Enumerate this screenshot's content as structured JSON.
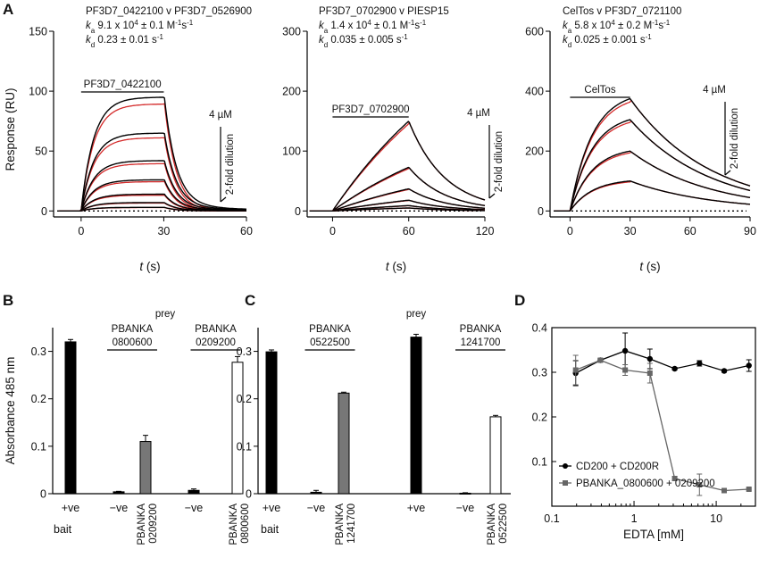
{
  "panel_labels": {
    "A": "A",
    "B": "B",
    "C": "C",
    "D": "D"
  },
  "common": {
    "spr_ylabel": "Response (RU)",
    "spr_xlabel_t": "t",
    "spr_xlabel_unit": " (s)",
    "elisa_ylabel": "Absorbance 485 nm",
    "prey": "prey",
    "bait": "bait"
  },
  "chart_data": [
    {
      "id": "A1",
      "type": "line",
      "title": "PF3D7_0422100 v PF3D7_0526900",
      "ka_sub": "a",
      "ka_val": " 9.1 x 10",
      "ka_exp": "4",
      "ka_rest": " ± 0.1 M",
      "ka_unit_exp": "-1",
      "ka_rest2": "s",
      "ka_unit_exp2": "-1",
      "kd_sub": "d",
      "kd_val": " 0.23 ± 0.01 s",
      "kd_unit_exp": "-1",
      "analyte_label": "PF3D7_0422100",
      "conc_label": "4 µM",
      "dilution_label": "2-fold dilution",
      "xlim": [
        -10,
        60
      ],
      "ylim": [
        -5,
        150
      ],
      "xticks": [
        0,
        30,
        60
      ],
      "yticks": [
        0,
        50,
        100,
        150
      ],
      "ylabel": "Response (RU)",
      "injection": [
        0,
        30
      ],
      "series": [
        {
          "data_color": "#000000",
          "fit_color": "#d42a2a",
          "plateau": 95
        },
        {
          "data_color": "#000000",
          "fit_color": "#d42a2a",
          "plateau": 65
        },
        {
          "data_color": "#000000",
          "fit_color": "#d42a2a",
          "plateau": 42
        },
        {
          "data_color": "#000000",
          "fit_color": "#d42a2a",
          "plateau": 26
        },
        {
          "data_color": "#000000",
          "fit_color": "#d42a2a",
          "plateau": 14
        },
        {
          "data_color": "#000000",
          "fit_color": "#d42a2a",
          "plateau": 7
        },
        {
          "data_color": "#000000",
          "fit_color": "#d42a2a",
          "plateau": 3
        }
      ]
    },
    {
      "id": "A2",
      "type": "line",
      "title": "PF3D7_0702900 v PIESP15",
      "ka_sub": "a",
      "ka_val": " 1.4 x 10",
      "ka_exp": "4",
      "ka_rest": " ± 0.1 M",
      "ka_unit_exp": "-1",
      "ka_rest2": "s",
      "ka_unit_exp2": "-1",
      "kd_sub": "d",
      "kd_val": " 0.035 ± 0.005 s",
      "kd_unit_exp": "-1",
      "analyte_label": "PF3D7_0702900",
      "conc_label": "4 µM",
      "dilution_label": "2-fold dilution",
      "xlim": [
        -20,
        120
      ],
      "ylim": [
        -10,
        300
      ],
      "xticks": [
        0,
        60,
        120
      ],
      "yticks": [
        0,
        100,
        200,
        300
      ],
      "injection": [
        0,
        60
      ],
      "series": [
        {
          "peak": 150
        },
        {
          "peak": 73
        },
        {
          "peak": 37
        },
        {
          "peak": 18
        },
        {
          "peak": 9
        },
        {
          "peak": 5
        }
      ]
    },
    {
      "id": "A3",
      "type": "line",
      "title": "CelTos v PF3D7_0721100",
      "ka_sub": "a",
      "ka_val": " 5.8 x 10",
      "ka_exp": "4",
      "ka_rest": " ± 0.2 M",
      "ka_unit_exp": "-1",
      "ka_rest2": "s",
      "ka_unit_exp2": "-1",
      "kd_sub": "d",
      "kd_val": " 0.025 ± 0.001 s",
      "kd_unit_exp": "-1",
      "analyte_label": "CelTos",
      "conc_label": "4 µM",
      "dilution_label": "2-fold dilution",
      "xlim": [
        -10,
        90
      ],
      "ylim": [
        -20,
        600
      ],
      "xticks": [
        0,
        30,
        60,
        90
      ],
      "yticks": [
        0,
        200,
        400,
        600
      ],
      "injection": [
        0,
        30
      ],
      "series": [
        {
          "peak": 375
        },
        {
          "peak": 305
        },
        {
          "peak": 200
        },
        {
          "peak": 100
        }
      ]
    },
    {
      "id": "B",
      "type": "bar",
      "ylim": [
        0,
        0.35
      ],
      "yticks": [
        0,
        0.1,
        0.2,
        0.3
      ],
      "ylabel": "Absorbance 485 nm",
      "groups": [
        {
          "label_top": "",
          "bars": [
            {
              "x_label": "+ve",
              "value": 0.32,
              "err": 0.005,
              "color": "#000000"
            }
          ]
        },
        {
          "label_top": "PBANKA\n0800600",
          "bars": [
            {
              "x_label": "−ve",
              "value": 0.004,
              "err": 0.001,
              "color": "#000000"
            },
            {
              "x_label": "PBANKA\n0209200",
              "value": 0.11,
              "err": 0.013,
              "color": "#777777"
            }
          ]
        },
        {
          "label_top": "PBANKA\n0209200",
          "bars": [
            {
              "x_label": "−ve",
              "value": 0.007,
              "err": 0.003,
              "color": "#000000"
            },
            {
              "x_label": "PBANKA\n0800600",
              "value": 0.277,
              "err": 0.012,
              "color": "#ffffff"
            }
          ]
        }
      ]
    },
    {
      "id": "C",
      "type": "bar",
      "ylim": [
        0,
        0.35
      ],
      "yticks": [
        0,
        0.1,
        0.2,
        0.3
      ],
      "groups": [
        {
          "label_top": "",
          "bars": [
            {
              "x_label": "+ve",
              "value": 0.299,
              "err": 0.004,
              "color": "#000000"
            }
          ]
        },
        {
          "label_top": "PBANKA\n0522500",
          "bars": [
            {
              "x_label": "−ve",
              "value": 0.003,
              "err": 0.004,
              "color": "#000000"
            },
            {
              "x_label": "PBANKA\n1241700",
              "value": 0.212,
              "err": 0.002,
              "color": "#777777"
            }
          ]
        },
        {
          "label_top": "",
          "bars": [
            {
              "x_label": "+ve",
              "value": 0.33,
              "err": 0.006,
              "color": "#000000"
            }
          ]
        },
        {
          "label_top": "PBANKA\n1241700",
          "bars": [
            {
              "x_label": "−ve",
              "value": 0.001,
              "err": 0.001,
              "color": "#000000"
            },
            {
              "x_label": "PBANKA\n0522500",
              "value": 0.162,
              "err": 0.003,
              "color": "#ffffff"
            }
          ]
        }
      ]
    },
    {
      "id": "D",
      "type": "line",
      "xscale": "log",
      "xlim": [
        0.1,
        30
      ],
      "ylim": [
        0,
        0.4
      ],
      "xticks": [
        0.1,
        1,
        10
      ],
      "yticks": [
        0.1,
        0.2,
        0.3,
        0.4
      ],
      "xlabel": "EDTA [mM]",
      "legend_position": "bottom-left",
      "series": [
        {
          "name": "CD200 + CD200R",
          "color": "#000000",
          "marker": "circle",
          "x": [
            0.195,
            0.39,
            0.78,
            1.56,
            3.125,
            6.25,
            12.5,
            25
          ],
          "y": [
            0.298,
            0.327,
            0.348,
            0.33,
            0.308,
            0.32,
            0.303,
            0.315
          ],
          "err": [
            0.028,
            0.004,
            0.04,
            0.022,
            0.003,
            0.006,
            0.003,
            0.013
          ]
        },
        {
          "name": "PBANKA_0800600 + 0209200",
          "color": "#666666",
          "marker": "square",
          "x": [
            0.195,
            0.39,
            0.78,
            1.56,
            3.125,
            6.25,
            12.5,
            25
          ],
          "y": [
            0.305,
            0.327,
            0.305,
            0.298,
            0.062,
            0.048,
            0.035,
            0.038
          ],
          "err": [
            0.033,
            0.004,
            0.012,
            0.022,
            0.005,
            0.024,
            0.003,
            0.002
          ]
        }
      ]
    }
  ]
}
